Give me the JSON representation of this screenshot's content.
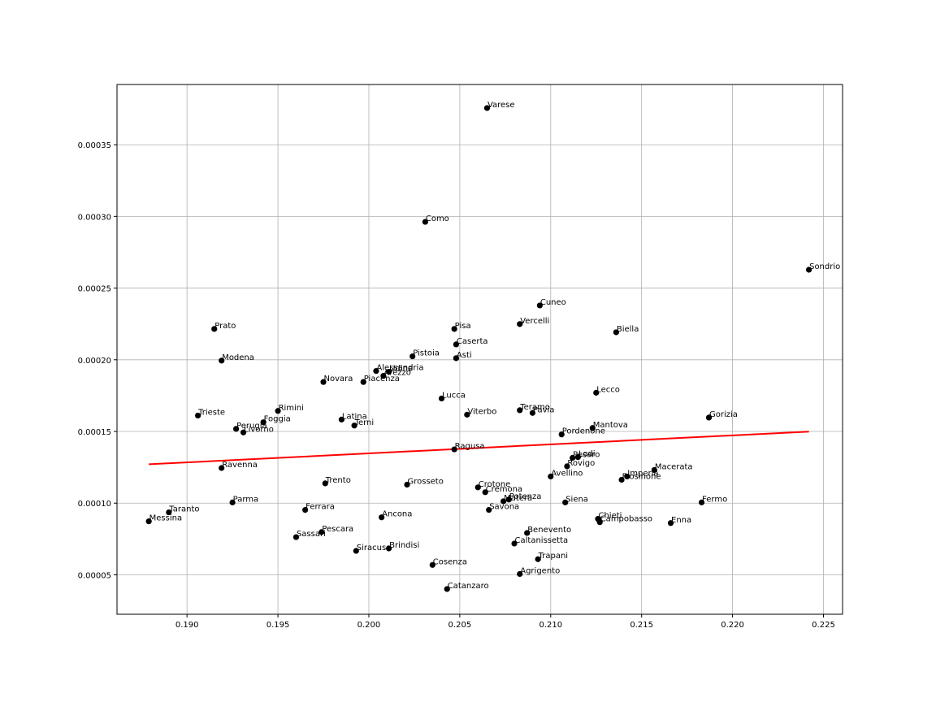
{
  "chart_data": {
    "type": "scatter",
    "title": "",
    "xlabel": "",
    "ylabel": "",
    "xlim": [
      0.18615,
      0.22605
    ],
    "ylim": [
      2.25e-05,
      0.000392
    ],
    "grid": true,
    "colors": {
      "points": "#000000",
      "fit_line": "#ff0000",
      "grid": "#b0b0b0"
    },
    "x_ticks": [
      {
        "value": 0.19,
        "label": "0.190"
      },
      {
        "value": 0.195,
        "label": "0.195"
      },
      {
        "value": 0.2,
        "label": "0.200"
      },
      {
        "value": 0.205,
        "label": "0.205"
      },
      {
        "value": 0.21,
        "label": "0.210"
      },
      {
        "value": 0.215,
        "label": "0.215"
      },
      {
        "value": 0.22,
        "label": "0.220"
      },
      {
        "value": 0.225,
        "label": "0.225"
      }
    ],
    "y_ticks": [
      {
        "value": 5e-05,
        "label": "0.00005"
      },
      {
        "value": 0.0001,
        "label": "0.00010"
      },
      {
        "value": 0.00015,
        "label": "0.00015"
      },
      {
        "value": 0.0002,
        "label": "0.00020"
      },
      {
        "value": 0.00025,
        "label": "0.00025"
      },
      {
        "value": 0.0003,
        "label": "0.00030"
      },
      {
        "value": 0.00035,
        "label": "0.00035"
      }
    ],
    "fit_line": {
      "x": [
        0.1879,
        0.2242
      ],
      "y": [
        0.0001271,
        0.0001499
      ]
    },
    "points": [
      {
        "label": "Varese",
        "x": 0.2065,
        "y": 0.0003756
      },
      {
        "label": "Como",
        "x": 0.2031,
        "y": 0.0002962
      },
      {
        "label": "Sondrio",
        "x": 0.2242,
        "y": 0.0002628
      },
      {
        "label": "Cuneo",
        "x": 0.2094,
        "y": 0.0002379
      },
      {
        "label": "Vercelli",
        "x": 0.2083,
        "y": 0.0002249
      },
      {
        "label": "Prato",
        "x": 0.1915,
        "y": 0.0002215
      },
      {
        "label": "Pisa",
        "x": 0.2047,
        "y": 0.0002215
      },
      {
        "label": "Biella",
        "x": 0.2136,
        "y": 0.0002192
      },
      {
        "label": "Caserta",
        "x": 0.2048,
        "y": 0.0002107
      },
      {
        "label": "Pistoia",
        "x": 0.2024,
        "y": 0.0002024
      },
      {
        "label": "Asti",
        "x": 0.2048,
        "y": 0.0002011
      },
      {
        "label": "Modena",
        "x": 0.1919,
        "y": 0.0001994
      },
      {
        "label": "Alessandria",
        "x": 0.2004,
        "y": 0.0001922
      },
      {
        "label": "Udine",
        "x": 0.2011,
        "y": 0.0001916
      },
      {
        "label": "Arezzo",
        "x": 0.2008,
        "y": 0.0001888
      },
      {
        "label": "Novara",
        "x": 0.1975,
        "y": 0.0001845
      },
      {
        "label": "Piacenza",
        "x": 0.1997,
        "y": 0.0001845
      },
      {
        "label": "Lecco",
        "x": 0.2125,
        "y": 0.000177
      },
      {
        "label": "Lucca",
        "x": 0.204,
        "y": 0.000173
      },
      {
        "label": "Teramo",
        "x": 0.2083,
        "y": 0.0001648
      },
      {
        "label": "Rimini",
        "x": 0.195,
        "y": 0.0001643
      },
      {
        "label": "Pavia",
        "x": 0.209,
        "y": 0.0001629
      },
      {
        "label": "Viterbo",
        "x": 0.2054,
        "y": 0.0001617
      },
      {
        "label": "Trieste",
        "x": 0.1906,
        "y": 0.0001611
      },
      {
        "label": "Gorizia",
        "x": 0.2187,
        "y": 0.0001597
      },
      {
        "label": "Latina",
        "x": 0.1985,
        "y": 0.0001583
      },
      {
        "label": "Foggia",
        "x": 0.1942,
        "y": 0.0001564
      },
      {
        "label": "Terni",
        "x": 0.1992,
        "y": 0.0001541
      },
      {
        "label": "Mantova",
        "x": 0.2123,
        "y": 0.0001524
      },
      {
        "label": "Perugia",
        "x": 0.1927,
        "y": 0.0001518
      },
      {
        "label": "Livorno",
        "x": 0.1931,
        "y": 0.0001493
      },
      {
        "label": "Pordenone",
        "x": 0.2106,
        "y": 0.0001479
      },
      {
        "label": "Ragusa",
        "x": 0.2047,
        "y": 0.0001375
      },
      {
        "label": "Pesaro",
        "x": 0.2112,
        "y": 0.0001316
      },
      {
        "label": "Lodi",
        "x": 0.2115,
        "y": 0.0001321
      },
      {
        "label": "Rovigo",
        "x": 0.2109,
        "y": 0.0001257
      },
      {
        "label": "Ravenna",
        "x": 0.1919,
        "y": 0.0001245
      },
      {
        "label": "Macerata",
        "x": 0.2157,
        "y": 0.0001231
      },
      {
        "label": "Avellino",
        "x": 0.21,
        "y": 0.0001186
      },
      {
        "label": "Imperia",
        "x": 0.2142,
        "y": 0.0001186
      },
      {
        "label": "Frosinone",
        "x": 0.2139,
        "y": 0.0001163
      },
      {
        "label": "Trento",
        "x": 0.1976,
        "y": 0.0001138
      },
      {
        "label": "Grosseto",
        "x": 0.2021,
        "y": 0.0001129
      },
      {
        "label": "Crotone",
        "x": 0.206,
        "y": 0.000111
      },
      {
        "label": "Cremona",
        "x": 0.2064,
        "y": 0.0001076
      },
      {
        "label": "Potenza",
        "x": 0.2077,
        "y": 0.0001025
      },
      {
        "label": "Matera",
        "x": 0.2074,
        "y": 0.0001013
      },
      {
        "label": "Parma",
        "x": 0.1925,
        "y": 0.0001005
      },
      {
        "label": "Siena",
        "x": 0.2108,
        "y": 0.0001005
      },
      {
        "label": "Fermo",
        "x": 0.2183,
        "y": 0.0001005
      },
      {
        "label": "Savona",
        "x": 0.2066,
        "y": 9.53e-05
      },
      {
        "label": "Ferrara",
        "x": 0.1965,
        "y": 9.53e-05
      },
      {
        "label": "Taranto",
        "x": 0.189,
        "y": 9.36e-05
      },
      {
        "label": "Ancona",
        "x": 0.2007,
        "y": 9.01e-05
      },
      {
        "label": "Chieti",
        "x": 0.2126,
        "y": 8.9e-05
      },
      {
        "label": "Messina",
        "x": 0.1879,
        "y": 8.73e-05
      },
      {
        "label": "Campobasso",
        "x": 0.2127,
        "y": 8.67e-05
      },
      {
        "label": "Enna",
        "x": 0.2166,
        "y": 8.61e-05
      },
      {
        "label": "Pescara",
        "x": 0.1974,
        "y": 7.98e-05
      },
      {
        "label": "Benevento",
        "x": 0.2087,
        "y": 7.92e-05
      },
      {
        "label": "Sassari",
        "x": 0.196,
        "y": 7.63e-05
      },
      {
        "label": "Caltanissetta",
        "x": 0.208,
        "y": 7.18e-05
      },
      {
        "label": "Brindisi",
        "x": 0.2011,
        "y": 6.84e-05
      },
      {
        "label": "Siracusa",
        "x": 0.1993,
        "y": 6.67e-05
      },
      {
        "label": "Trapani",
        "x": 0.2093,
        "y": 6.09e-05
      },
      {
        "label": "Cosenza",
        "x": 0.2035,
        "y": 5.69e-05
      },
      {
        "label": "Agrigento",
        "x": 0.2083,
        "y": 5.06e-05
      },
      {
        "label": "Catanzaro",
        "x": 0.2043,
        "y": 4.01e-05
      }
    ]
  }
}
